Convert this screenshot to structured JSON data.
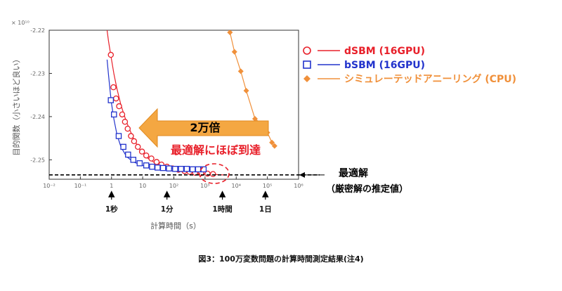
{
  "chart_data": {
    "type": "line",
    "title": "",
    "xlabel": "計算時間（s）",
    "ylabel": "目的関数（小さいほど良い）",
    "x_scale": "log",
    "xlim": [
      0.01,
      1000000
    ],
    "ylim": [
      -2.2545,
      -2.22
    ],
    "y_exponent_label": "× 10¹⁰",
    "x_ticks": [
      "10⁻²",
      "10⁻¹",
      "1",
      "10",
      "10²",
      "10³",
      "10⁴",
      "10⁵",
      "10⁶"
    ],
    "x_tick_values": [
      0.01,
      0.1,
      1,
      10,
      100,
      1000,
      10000,
      100000,
      1000000
    ],
    "y_ticks": [
      "-2.22",
      "-2.23",
      "-2.24",
      "-2.25"
    ],
    "y_tick_values": [
      -2.22,
      -2.23,
      -2.24,
      -2.25
    ],
    "grid": false,
    "legend_position": "right",
    "series": [
      {
        "name": "dSBM (16GPU)",
        "color": "#e8202a",
        "marker": "open-circle",
        "points": [
          [
            0.95,
            -2.2257
          ],
          [
            1.15,
            -2.2332
          ],
          [
            1.4,
            -2.2358
          ],
          [
            1.75,
            -2.2376
          ],
          [
            2.2,
            -2.2395
          ],
          [
            2.7,
            -2.2412
          ],
          [
            3.3,
            -2.2428
          ],
          [
            4.2,
            -2.2445
          ],
          [
            5.3,
            -2.2457
          ],
          [
            7,
            -2.247
          ],
          [
            9.5,
            -2.2481
          ],
          [
            13,
            -2.249
          ],
          [
            19,
            -2.2497
          ],
          [
            28,
            -2.2505
          ],
          [
            40,
            -2.2511
          ],
          [
            60,
            -2.2516
          ],
          [
            90,
            -2.252
          ],
          [
            140,
            -2.2523
          ],
          [
            220,
            -2.2526
          ],
          [
            320,
            -2.2528
          ],
          [
            480,
            -2.253
          ],
          [
            750,
            -2.2531
          ],
          [
            1200,
            -2.2532
          ],
          [
            1800,
            -2.2533
          ]
        ],
        "fit": [
          [
            0.72,
            -2.22
          ],
          [
            0.8,
            -2.2225
          ],
          [
            0.9,
            -2.2248
          ],
          [
            1.0,
            -2.2268
          ],
          [
            1.2,
            -2.2302
          ],
          [
            1.5,
            -2.2336
          ],
          [
            2,
            -2.2373
          ],
          [
            3,
            -2.2412
          ],
          [
            5,
            -2.245
          ],
          [
            8,
            -2.2476
          ],
          [
            15,
            -2.2497
          ],
          [
            30,
            -2.2511
          ],
          [
            70,
            -2.2521
          ],
          [
            200,
            -2.2528
          ],
          [
            700,
            -2.2532
          ],
          [
            2000,
            -2.2534
          ],
          [
            4000,
            -2.2535
          ]
        ]
      },
      {
        "name": "bSBM (16GPU)",
        "color": "#2233cc",
        "marker": "open-square",
        "points": [
          [
            0.95,
            -2.2362
          ],
          [
            1.2,
            -2.2395
          ],
          [
            1.7,
            -2.2445
          ],
          [
            2.4,
            -2.247
          ],
          [
            3.4,
            -2.2488
          ],
          [
            5,
            -2.25
          ],
          [
            8,
            -2.2508
          ],
          [
            13,
            -2.2513
          ],
          [
            20,
            -2.2516
          ],
          [
            30,
            -2.2518
          ],
          [
            45,
            -2.2519
          ],
          [
            70,
            -2.252
          ],
          [
            110,
            -2.2521
          ],
          [
            170,
            -2.2521
          ],
          [
            260,
            -2.2521
          ],
          [
            400,
            -2.2522
          ],
          [
            600,
            -2.2522
          ],
          [
            900,
            -2.2522
          ]
        ],
        "fit": [
          [
            0.72,
            -2.2268
          ],
          [
            0.8,
            -2.2303
          ],
          [
            0.9,
            -2.234
          ],
          [
            1.0,
            -2.237
          ],
          [
            1.2,
            -2.2407
          ],
          [
            1.5,
            -2.2442
          ],
          [
            2,
            -2.247
          ],
          [
            3,
            -2.2492
          ],
          [
            5,
            -2.2505
          ],
          [
            10,
            -2.2513
          ],
          [
            30,
            -2.2518
          ],
          [
            100,
            -2.252
          ],
          [
            400,
            -2.2522
          ],
          [
            1000,
            -2.2523
          ]
        ]
      },
      {
        "name": "シミュレーテッドアニーリング (CPU)",
        "color": "#f0903a",
        "marker": "filled-diamond",
        "points": [
          [
            6300,
            -2.2205
          ],
          [
            8800,
            -2.225
          ],
          [
            14000,
            -2.2295
          ],
          [
            21000,
            -2.234
          ],
          [
            40000,
            -2.2405
          ],
          [
            80000,
            -2.2422
          ],
          [
            100000,
            -2.2437
          ],
          [
            140000,
            -2.246
          ],
          [
            170000,
            -2.2468
          ]
        ],
        "fit": [
          [
            5800,
            -2.22
          ],
          [
            6300,
            -2.2205
          ],
          [
            8800,
            -2.225
          ],
          [
            14000,
            -2.2295
          ],
          [
            21000,
            -2.234
          ],
          [
            40000,
            -2.2405
          ],
          [
            80000,
            -2.2422
          ],
          [
            100000,
            -2.2437
          ],
          [
            140000,
            -2.246
          ],
          [
            170000,
            -2.2468
          ]
        ]
      }
    ],
    "reference_line": {
      "y": -2.2535,
      "style": "dashed",
      "label": "最適解",
      "sublabel": "（厳密解の推定値）"
    },
    "annotations": {
      "arrow_text": "2万倍",
      "near_optimum_text": "最適解にほぼ到達",
      "time_markers": [
        {
          "x": 1,
          "label": "1秒"
        },
        {
          "x": 60,
          "label": "1分"
        },
        {
          "x": 3600,
          "label": "1時間"
        },
        {
          "x": 86400,
          "label": "1日"
        }
      ]
    }
  },
  "caption": "図3：100万変数問題の計算時間測定結果(注4)"
}
